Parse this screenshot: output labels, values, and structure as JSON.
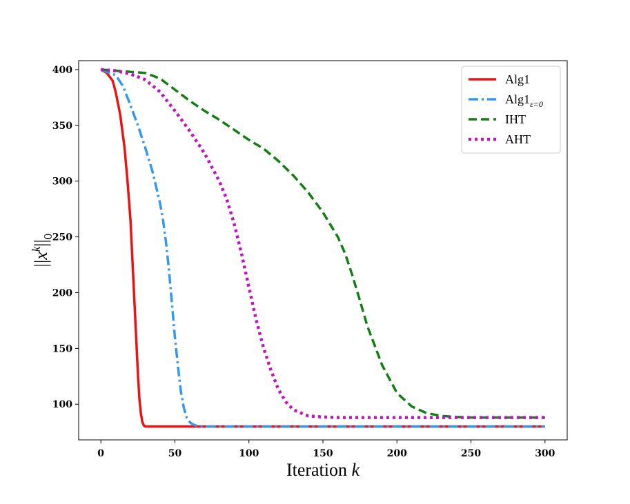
{
  "chart_data": {
    "type": "line",
    "xlabel": "Iteration k",
    "ylabel": "||x^k||_0",
    "xlim": [
      -15,
      315
    ],
    "ylim": [
      68,
      408
    ],
    "xticks": [
      0,
      50,
      100,
      150,
      200,
      250,
      300
    ],
    "yticks": [
      100,
      150,
      200,
      250,
      300,
      350,
      400
    ],
    "grid": false,
    "legend_position": "top-right",
    "series": [
      {
        "name": "Alg1",
        "color": "#ee1111",
        "style": "solid",
        "x": [
          0,
          4,
          8,
          10,
          13,
          16,
          18,
          20,
          22,
          24,
          25,
          26,
          27,
          28,
          29,
          30,
          35,
          50,
          100,
          150,
          200,
          250,
          300
        ],
        "y": [
          400,
          397,
          390,
          380,
          360,
          330,
          300,
          265,
          210,
          155,
          128,
          105,
          92,
          84,
          81,
          80,
          80,
          80,
          80,
          80,
          80,
          80,
          80
        ]
      },
      {
        "name": "Alg1_{ε=0}",
        "color": "#3399ee",
        "style": "dashdot",
        "x": [
          0,
          10,
          15,
          20,
          25,
          30,
          35,
          40,
          42,
          44,
          46,
          48,
          50,
          52,
          54,
          56,
          58,
          60,
          62,
          65,
          70,
          80,
          100,
          150,
          200,
          250,
          300
        ],
        "y": [
          400,
          395,
          385,
          368,
          350,
          330,
          308,
          280,
          265,
          245,
          220,
          190,
          160,
          135,
          112,
          97,
          88,
          84,
          82,
          80.5,
          80,
          80,
          80,
          80,
          80,
          80,
          80
        ]
      },
      {
        "name": "IHT",
        "color": "#137e13",
        "style": "dashed",
        "x": [
          0,
          10,
          20,
          30,
          40,
          50,
          60,
          70,
          80,
          90,
          100,
          110,
          120,
          130,
          140,
          150,
          160,
          165,
          170,
          175,
          180,
          190,
          200,
          210,
          220,
          230,
          240,
          250,
          260,
          280,
          300
        ],
        "y": [
          400,
          399,
          398,
          397,
          392,
          382,
          372,
          363,
          355,
          346,
          337,
          329,
          318,
          305,
          290,
          272,
          250,
          235,
          215,
          193,
          170,
          135,
          110,
          98,
          92,
          89.5,
          88.5,
          88,
          88,
          88,
          88
        ]
      },
      {
        "name": "AHT",
        "color": "#c212c2",
        "style": "dotted",
        "x": [
          0,
          10,
          20,
          30,
          40,
          50,
          60,
          70,
          80,
          85,
          90,
          95,
          100,
          105,
          110,
          115,
          120,
          125,
          130,
          140,
          150,
          160,
          180,
          200,
          250,
          300
        ],
        "y": [
          400,
          399,
          396,
          391,
          380,
          363,
          345,
          325,
          300,
          284,
          262,
          235,
          205,
          175,
          150,
          130,
          113,
          102,
          95,
          89.5,
          88.5,
          88,
          88,
          88,
          88,
          88
        ]
      }
    ]
  }
}
